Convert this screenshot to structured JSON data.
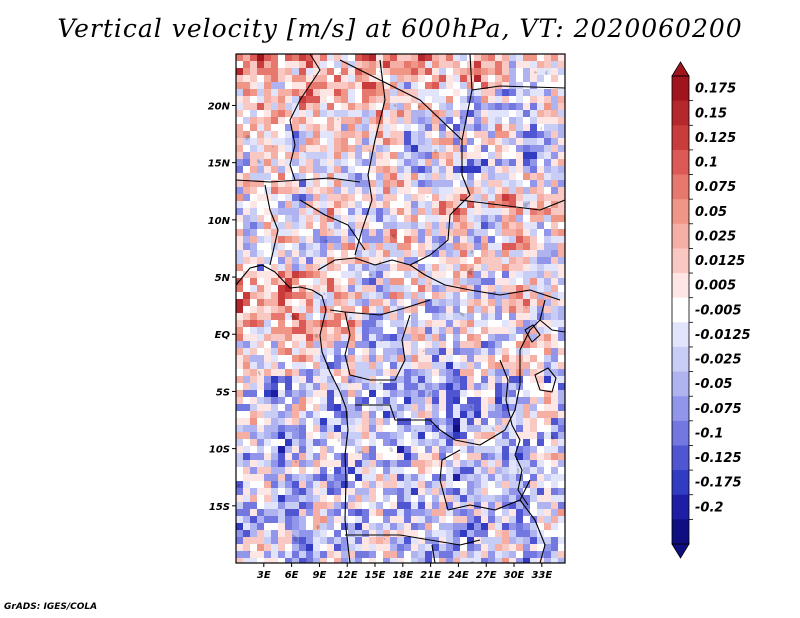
{
  "chart_data": {
    "type": "heatmap",
    "title": "Vertical velocity [m/s] at 600hPa, VT: 2020060200",
    "x_ticks": [
      "3E",
      "6E",
      "9E",
      "12E",
      "15E",
      "18E",
      "21E",
      "24E",
      "27E",
      "30E",
      "33E"
    ],
    "x_tick_values": [
      3,
      6,
      9,
      12,
      15,
      18,
      21,
      24,
      27,
      30,
      33
    ],
    "y_ticks": [
      "20N",
      "15N",
      "10N",
      "5N",
      "EQ",
      "5S",
      "10S",
      "15S"
    ],
    "y_tick_values": [
      20,
      15,
      10,
      5,
      0,
      -5,
      -10,
      -15
    ],
    "xlim": [
      0,
      35.5
    ],
    "ylim": [
      -20,
      24.5
    ],
    "colorbar": {
      "levels": [
        "0.175",
        "0.15",
        "0.125",
        "0.1",
        "0.075",
        "0.05",
        "0.025",
        "0.0125",
        "0.005",
        "-0.005",
        "-0.0125",
        "-0.025",
        "-0.05",
        "-0.075",
        "-0.1",
        "-0.125",
        "-0.175",
        "-0.2"
      ],
      "colors": [
        "#a0141e",
        "#b4282d",
        "#c83c3c",
        "#dc5a55",
        "#e6786e",
        "#f09687",
        "#f5afa5",
        "#fac8c3",
        "#fde6e3",
        "#ffffff",
        "#e1e4fa",
        "#c8cdf5",
        "#afb4f0",
        "#9196eb",
        "#7378e1",
        "#5055d2",
        "#323cc3",
        "#1e1ea5",
        "#0f0f82"
      ]
    }
  },
  "footer": "GrADS: IGES/COLA"
}
